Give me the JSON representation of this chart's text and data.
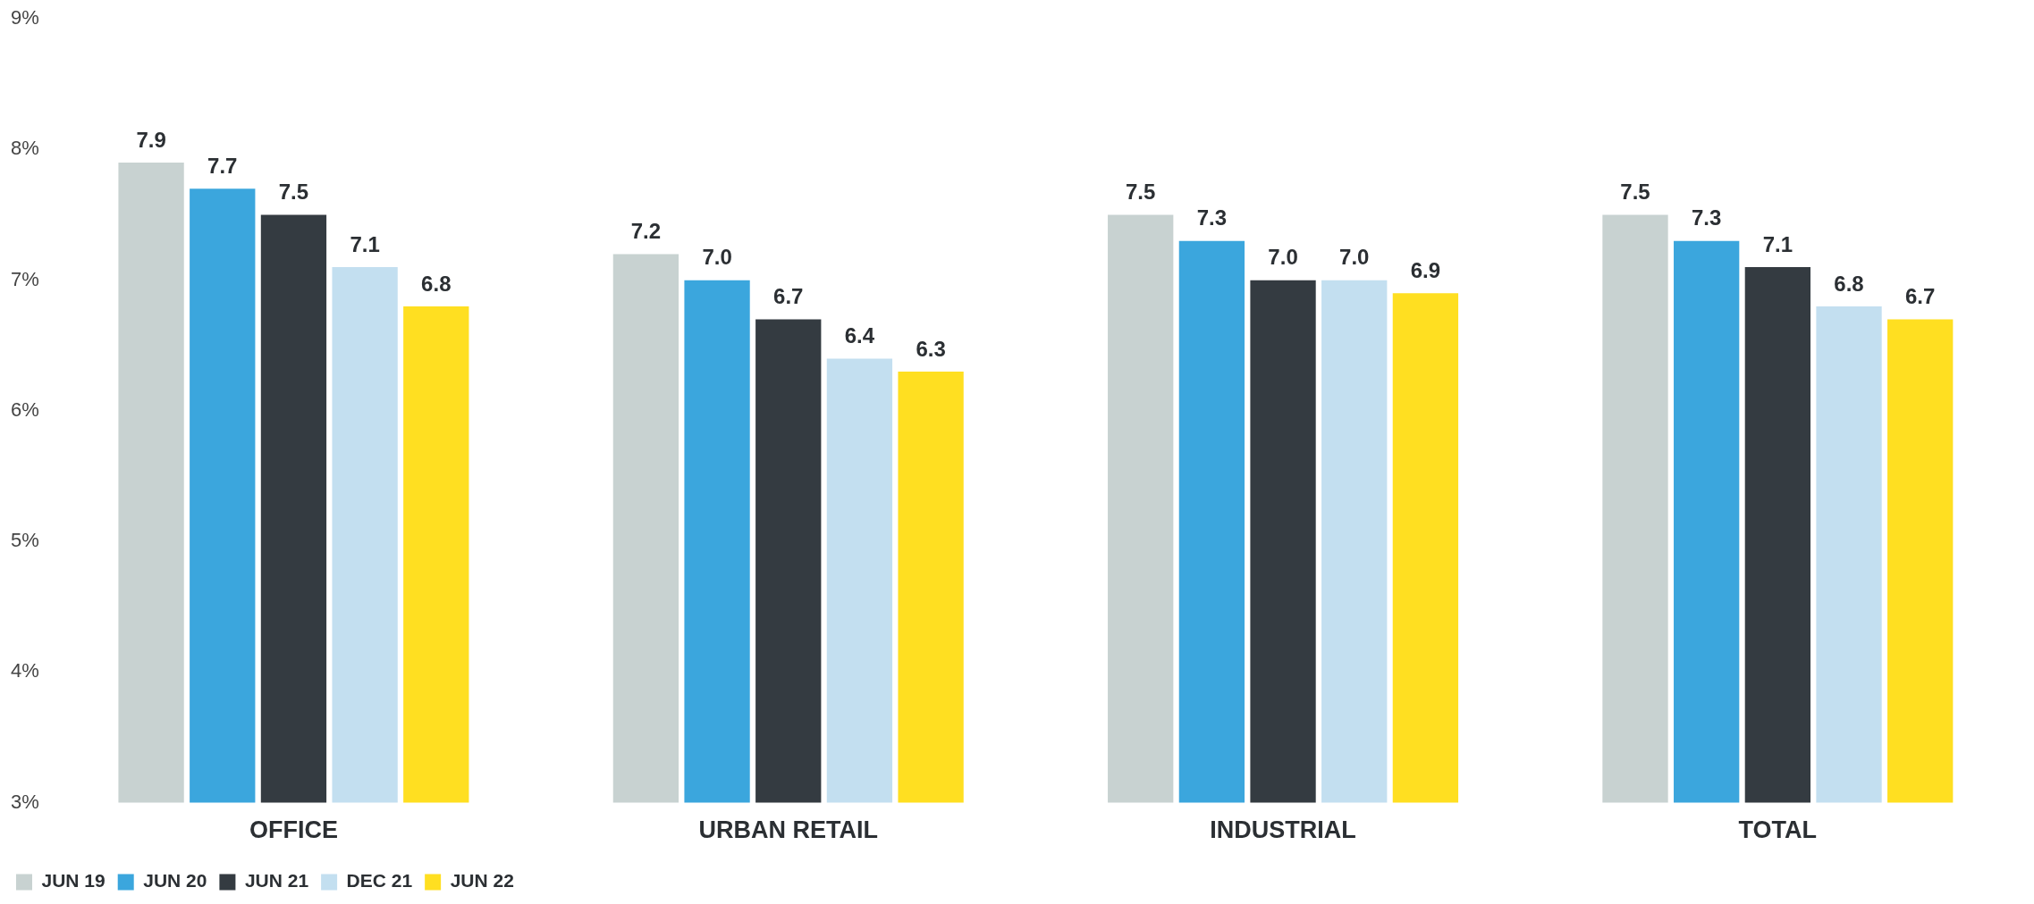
{
  "chart_data": {
    "type": "bar",
    "categories": [
      "OFFICE",
      "URBAN RETAIL",
      "INDUSTRIAL",
      "TOTAL"
    ],
    "series": [
      {
        "name": "JUN 19",
        "color": "#c8d2d1",
        "values": [
          7.9,
          7.2,
          7.5,
          7.5
        ],
        "value_labels": [
          "7.9",
          "7.2",
          "7.5",
          "7.5"
        ]
      },
      {
        "name": "JUN 20",
        "color": "#3ba6dd",
        "values": [
          7.7,
          7.0,
          7.3,
          7.3
        ],
        "value_labels": [
          "7.7",
          "7.0",
          "7.3",
          "7.3"
        ]
      },
      {
        "name": "JUN 21",
        "color": "#343b41",
        "values": [
          7.5,
          6.7,
          7.0,
          7.1
        ],
        "value_labels": [
          "7.5",
          "6.7",
          "7.0",
          "7.1"
        ]
      },
      {
        "name": "DEC 21",
        "color": "#c3dff0",
        "values": [
          7.1,
          6.4,
          7.0,
          6.8
        ],
        "value_labels": [
          "7.1",
          "6.4",
          "7.0",
          "6.8"
        ]
      },
      {
        "name": "JUN 22",
        "color": "#ffdf21",
        "values": [
          6.8,
          6.3,
          6.9,
          6.7
        ],
        "value_labels": [
          "6.8",
          "6.3",
          "6.9",
          "6.7"
        ]
      }
    ],
    "ylim": [
      3,
      9
    ],
    "yticks": [
      {
        "value": 3,
        "label": "3%"
      },
      {
        "value": 4,
        "label": "4%"
      },
      {
        "value": 5,
        "label": "5%"
      },
      {
        "value": 6,
        "label": "6%"
      },
      {
        "value": 7,
        "label": "7%"
      },
      {
        "value": 8,
        "label": "8%"
      },
      {
        "value": 9,
        "label": "9%"
      }
    ],
    "grid": false,
    "legend": "bottom left"
  }
}
